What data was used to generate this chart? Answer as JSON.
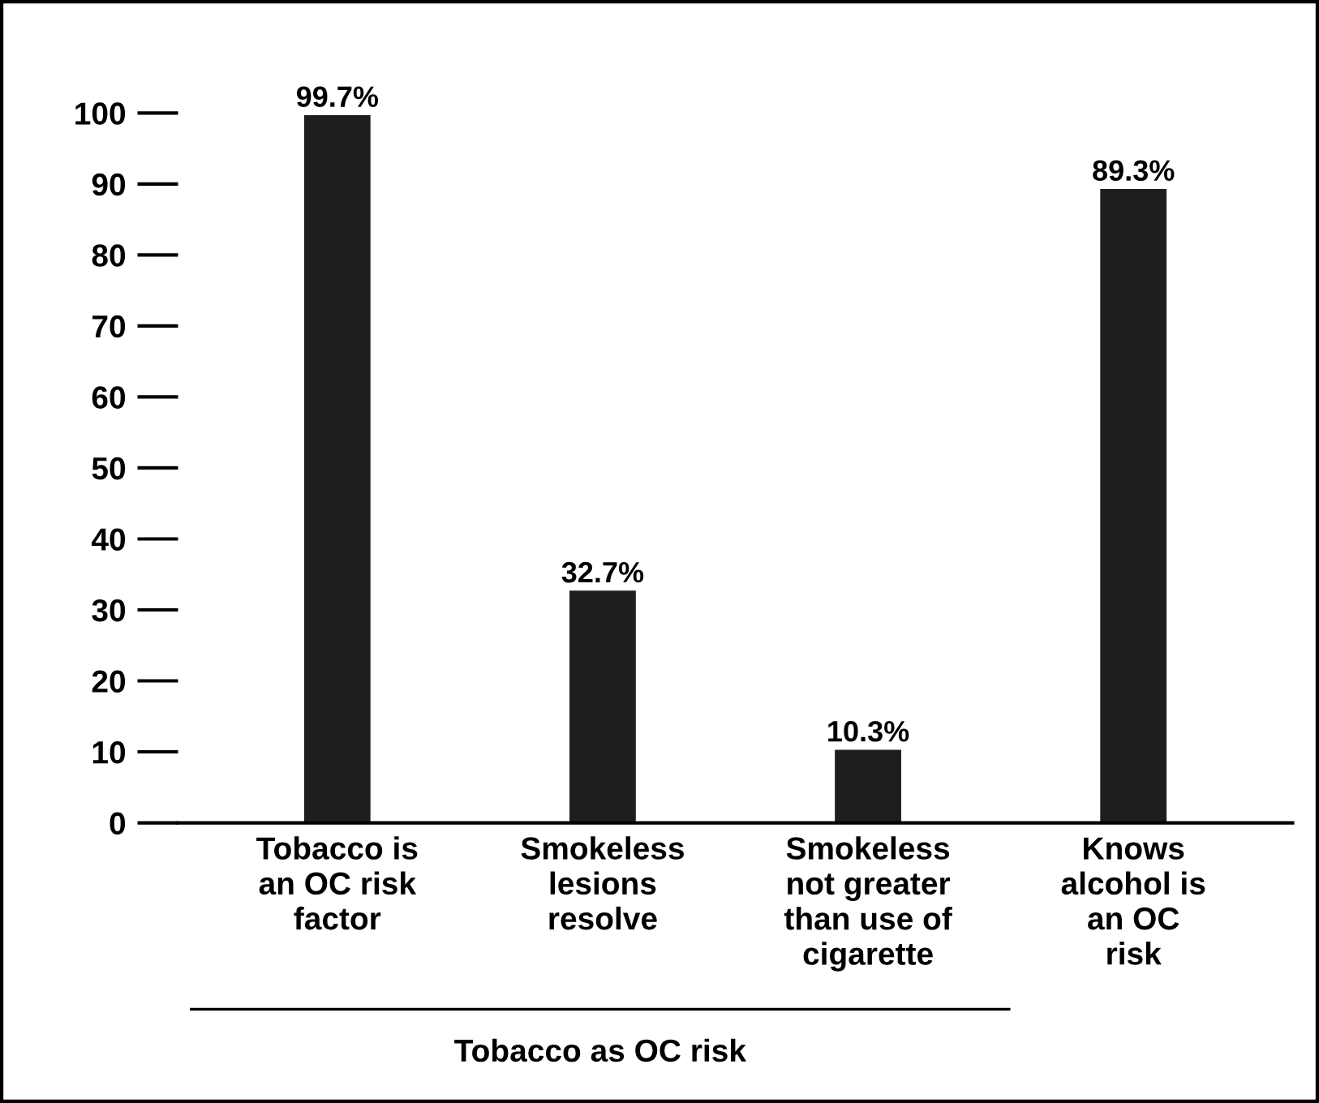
{
  "chart_data": {
    "type": "bar",
    "categories": [
      "Tobacco is\nan OC risk\nfactor",
      "Smokeless\nlesions\nresolve",
      "Smokeless\nnot greater\nthan use of\ncigarette",
      "Knows\nalcohol is\nan OC\nrisk"
    ],
    "values": [
      99.7,
      32.7,
      10.3,
      89.3
    ],
    "value_labels": [
      "99.7%",
      "32.7%",
      "10.3%",
      "89.3%"
    ],
    "color": "#1e1e1e",
    "ylim": [
      0,
      101
    ],
    "yticks": [
      0,
      10,
      20,
      30,
      40,
      50,
      60,
      70,
      80,
      90,
      100
    ],
    "grid": false,
    "annotations": [
      "Tobacco as OC risk"
    ]
  }
}
